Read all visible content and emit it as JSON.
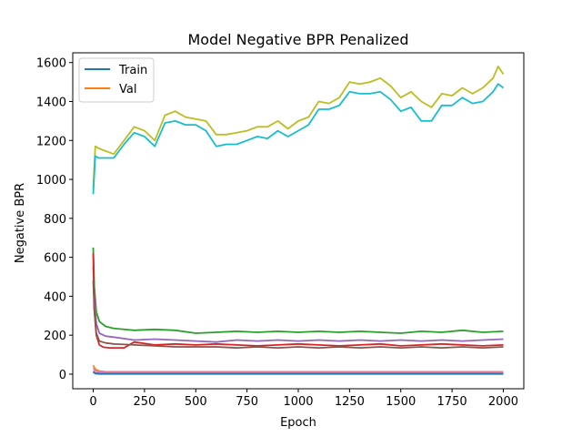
{
  "chart_data": {
    "type": "line",
    "title": "Model Negative BPR Penalized",
    "xlabel": "Epoch",
    "ylabel": "Negative BPR",
    "xlim": [
      -100,
      2100
    ],
    "ylim": [
      -75,
      1650
    ],
    "xticks": [
      0,
      250,
      500,
      750,
      1000,
      1250,
      1500,
      1750,
      2000
    ],
    "yticks": [
      0,
      200,
      400,
      600,
      800,
      1000,
      1200,
      1400,
      1600
    ],
    "legend": {
      "placement": "upper-left",
      "entries": [
        {
          "label": "Train",
          "color": "#1f77b4"
        },
        {
          "label": "Val",
          "color": "#ff7f0e"
        }
      ]
    },
    "series": [
      {
        "color": "#bcbd22",
        "x": [
          0,
          10,
          25,
          50,
          100,
          150,
          200,
          250,
          300,
          350,
          400,
          450,
          500,
          550,
          600,
          650,
          700,
          750,
          800,
          850,
          900,
          950,
          1000,
          1050,
          1100,
          1150,
          1200,
          1250,
          1300,
          1350,
          1400,
          1450,
          1500,
          1550,
          1600,
          1650,
          1700,
          1750,
          1800,
          1850,
          1900,
          1950,
          1975,
          2000
        ],
        "y": [
          950,
          1170,
          1160,
          1150,
          1130,
          1200,
          1270,
          1250,
          1200,
          1330,
          1350,
          1320,
          1310,
          1300,
          1230,
          1230,
          1240,
          1250,
          1270,
          1270,
          1300,
          1260,
          1300,
          1320,
          1400,
          1390,
          1420,
          1500,
          1490,
          1500,
          1520,
          1480,
          1420,
          1450,
          1400,
          1370,
          1440,
          1430,
          1470,
          1440,
          1470,
          1520,
          1580,
          1540
        ]
      },
      {
        "color": "#17becf",
        "x": [
          0,
          10,
          25,
          50,
          100,
          150,
          200,
          250,
          300,
          350,
          400,
          450,
          500,
          550,
          600,
          650,
          700,
          750,
          800,
          850,
          900,
          950,
          1000,
          1050,
          1100,
          1150,
          1200,
          1250,
          1300,
          1350,
          1400,
          1450,
          1500,
          1550,
          1600,
          1650,
          1700,
          1750,
          1800,
          1850,
          1900,
          1950,
          1975,
          2000
        ],
        "y": [
          925,
          1120,
          1110,
          1110,
          1110,
          1180,
          1240,
          1220,
          1170,
          1290,
          1300,
          1280,
          1280,
          1250,
          1170,
          1180,
          1180,
          1200,
          1220,
          1210,
          1250,
          1220,
          1250,
          1280,
          1360,
          1360,
          1380,
          1450,
          1440,
          1440,
          1450,
          1410,
          1350,
          1370,
          1300,
          1300,
          1380,
          1380,
          1420,
          1390,
          1400,
          1450,
          1490,
          1470
        ]
      },
      {
        "color": "#2ca02c",
        "x": [
          0,
          5,
          15,
          30,
          60,
          100,
          200,
          300,
          400,
          500,
          600,
          700,
          800,
          900,
          1000,
          1100,
          1200,
          1300,
          1400,
          1500,
          1600,
          1700,
          1800,
          1900,
          2000
        ],
        "y": [
          650,
          450,
          320,
          270,
          245,
          235,
          225,
          230,
          225,
          210,
          215,
          220,
          215,
          220,
          215,
          220,
          215,
          220,
          215,
          210,
          220,
          215,
          225,
          215,
          220
        ]
      },
      {
        "color": "#9467bd",
        "x": [
          0,
          5,
          15,
          30,
          60,
          100,
          200,
          300,
          400,
          500,
          600,
          700,
          800,
          900,
          1000,
          1100,
          1200,
          1300,
          1400,
          1500,
          1600,
          1700,
          1800,
          1900,
          2000
        ],
        "y": [
          550,
          400,
          260,
          210,
          195,
          190,
          175,
          180,
          175,
          170,
          165,
          175,
          170,
          175,
          170,
          175,
          170,
          175,
          170,
          175,
          170,
          175,
          170,
          175,
          180
        ]
      },
      {
        "color": "#d62728",
        "x": [
          0,
          5,
          15,
          30,
          50,
          80,
          150,
          200,
          300,
          400,
          500,
          600,
          700,
          800,
          900,
          1000,
          1100,
          1200,
          1300,
          1400,
          1500,
          1600,
          1700,
          1800,
          1900,
          2000
        ],
        "y": [
          620,
          330,
          200,
          150,
          138,
          135,
          135,
          165,
          150,
          155,
          150,
          155,
          150,
          145,
          150,
          155,
          150,
          145,
          150,
          155,
          145,
          150,
          155,
          150,
          145,
          150
        ]
      },
      {
        "color": "#8c564b",
        "x": [
          0,
          5,
          15,
          30,
          60,
          100,
          200,
          300,
          400,
          500,
          600,
          700,
          800,
          900,
          1000,
          1100,
          1200,
          1300,
          1400,
          1500,
          1600,
          1700,
          1800,
          1900,
          2000
        ],
        "y": [
          480,
          330,
          210,
          170,
          160,
          155,
          150,
          145,
          140,
          140,
          140,
          135,
          140,
          135,
          140,
          135,
          140,
          135,
          140,
          135,
          140,
          135,
          140,
          135,
          140
        ]
      },
      {
        "color": "#ff7f0e",
        "x": [
          0,
          10,
          30,
          60,
          100,
          500,
          1000,
          1500,
          2000
        ],
        "y": [
          45,
          25,
          15,
          12,
          12,
          12,
          12,
          12,
          12
        ]
      },
      {
        "color": "#e377c2",
        "x": [
          0,
          10,
          30,
          60,
          100,
          500,
          1000,
          1500,
          2000
        ],
        "y": [
          30,
          18,
          10,
          8,
          8,
          8,
          8,
          8,
          8
        ]
      },
      {
        "color": "#7f7f7f",
        "x": [
          0,
          10,
          30,
          60,
          100,
          500,
          1000,
          1500,
          2000
        ],
        "y": [
          15,
          6,
          3,
          2,
          2,
          2,
          2,
          2,
          2
        ]
      },
      {
        "color": "#1f77b4",
        "x": [
          0,
          10,
          30,
          60,
          100,
          500,
          1000,
          1500,
          2000
        ],
        "y": [
          10,
          3,
          1,
          1,
          1,
          1,
          1,
          1,
          1
        ]
      }
    ]
  }
}
